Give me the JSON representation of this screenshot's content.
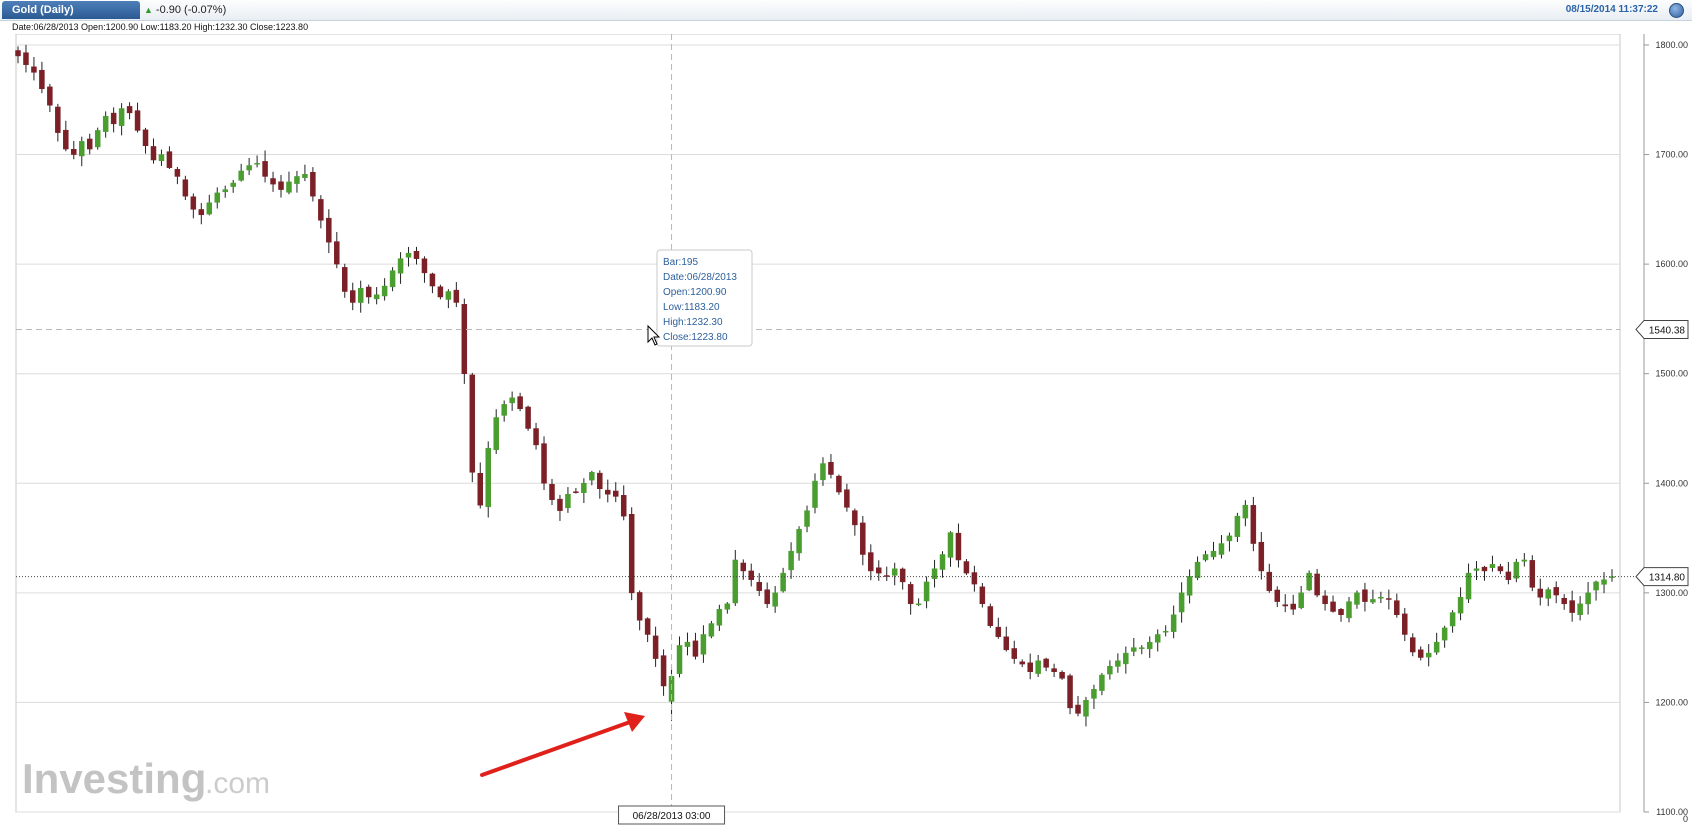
{
  "header": {
    "symbol_tab": "Gold (Daily)",
    "change": "-0.90 (-0.07%)",
    "timestamp": "08/15/2014 11:37:22",
    "ohlc_line": "Date:06/28/2013 Open:1200.90 Low:1183.20 High:1232.30 Close:1223.80"
  },
  "tooltip": {
    "lines": [
      {
        "label": "Bar:",
        "value": "195"
      },
      {
        "label": "Date:",
        "value": "06/28/2013"
      },
      {
        "label": "Open:",
        "value": "1200.90"
      },
      {
        "label": "Low:",
        "value": "1183.20"
      },
      {
        "label": "High:",
        "value": "1232.30"
      },
      {
        "label": "Close:",
        "value": "1223.80"
      }
    ]
  },
  "crosshair": {
    "price_label": "1540.38",
    "date_label": "06/28/2013 03:00"
  },
  "last_price_label": "1314.80",
  "x_axis_corner": "0",
  "watermark": {
    "brand": "Investing",
    "suffix": ".com"
  },
  "colors": {
    "up": "#4a9e2f",
    "down": "#7a2026",
    "grid": "#dcdcdc",
    "axis_text": "#333333",
    "tab": "#2f5f9f",
    "arrow": "#e0211b",
    "tooltip_text": "#2b5f9c"
  },
  "chart_data": {
    "type": "candlestick",
    "title": "Gold (Daily)",
    "ylim": [
      1100,
      1810
    ],
    "y_ticks": [
      "1100.00",
      "1200.00",
      "1300.00",
      "1400.00",
      "1500.00",
      "1600.00",
      "1700.00",
      "1800.00"
    ],
    "grid": true,
    "highlighted_bar": {
      "bar": 195,
      "date": "06/28/2013",
      "open": 1200.9,
      "low": 1183.2,
      "high": 1232.3,
      "close": 1223.8
    },
    "crosshair_price": 1540.38,
    "last_close": 1314.8,
    "series": [
      {
        "name": "Gold (Daily)",
        "close_path": [
          1790,
          1782,
          1775,
          1760,
          1745,
          1720,
          1705,
          1700,
          1712,
          1705,
          1722,
          1735,
          1728,
          1742,
          1738,
          1722,
          1708,
          1695,
          1700,
          1688,
          1680,
          1662,
          1650,
          1645,
          1656,
          1665,
          1668,
          1674,
          1685,
          1690,
          1692,
          1680,
          1673,
          1668,
          1675,
          1680,
          1682,
          1662,
          1640,
          1620,
          1600,
          1575,
          1565,
          1578,
          1570,
          1572,
          1580,
          1594,
          1605,
          1610,
          1605,
          1592,
          1580,
          1570,
          1575,
          1565,
          1500,
          1410,
          1380,
          1432,
          1460,
          1472,
          1478,
          1468,
          1450,
          1435,
          1400,
          1385,
          1375,
          1390,
          1392,
          1400,
          1410,
          1395,
          1390,
          1388,
          1370,
          1300,
          1275,
          1262,
          1240,
          1215,
          1223.8,
          1252,
          1255,
          1242,
          1262,
          1272,
          1285,
          1290,
          1330,
          1320,
          1312,
          1302,
          1290,
          1300,
          1318,
          1338,
          1358,
          1375,
          1402,
          1418,
          1408,
          1392,
          1378,
          1362,
          1335,
          1320,
          1318,
          1315,
          1322,
          1310,
          1290,
          1290,
          1310,
          1322,
          1335,
          1355,
          1330,
          1318,
          1308,
          1290,
          1270,
          1260,
          1248,
          1240,
          1235,
          1228,
          1238,
          1232,
          1228,
          1222,
          1195,
          1190,
          1202,
          1212,
          1225,
          1233,
          1238,
          1245,
          1250,
          1250,
          1255,
          1262,
          1265,
          1280,
          1300,
          1315,
          1328,
          1335,
          1338,
          1345,
          1352,
          1370,
          1380,
          1345,
          1320,
          1302,
          1292,
          1288,
          1285,
          1300,
          1318,
          1298,
          1290,
          1283,
          1280,
          1292,
          1300,
          1292,
          1294,
          1296,
          1294,
          1280,
          1262,
          1246,
          1241,
          1245,
          1255,
          1268,
          1282,
          1296,
          1318,
          1322,
          1320,
          1326,
          1320,
          1312,
          1328,
          1330,
          1305,
          1296,
          1303,
          1298,
          1290,
          1282,
          1290,
          1300,
          1310,
          1312,
          1314.8
        ]
      }
    ]
  }
}
